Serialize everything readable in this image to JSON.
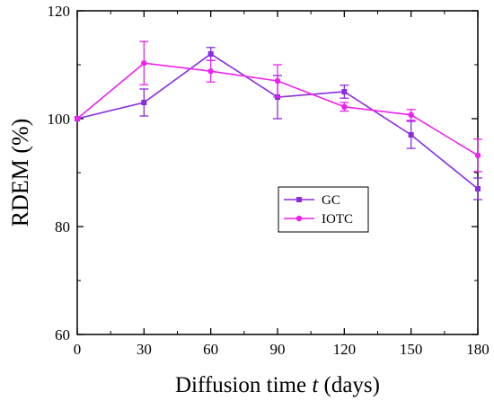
{
  "chart_data": {
    "type": "line",
    "title": "",
    "xlabel": "Diffusion time t (days)",
    "xlabel_parts": {
      "before": "Diffusion time ",
      "italic": "t",
      "after": " (days)"
    },
    "ylabel": "RDEM (%)",
    "xlim": [
      0,
      180
    ],
    "ylim": [
      60,
      120
    ],
    "xticks": [
      0,
      30,
      60,
      90,
      120,
      150,
      180
    ],
    "yticks": [
      60,
      80,
      100,
      120
    ],
    "grid": false,
    "legend_position": "center-right",
    "x": [
      0,
      30,
      60,
      90,
      120,
      150,
      180
    ],
    "series": [
      {
        "name": "GC",
        "color": "#8a2be2",
        "marker": "square",
        "values": [
          100,
          103,
          112,
          104,
          105,
          97,
          87
        ],
        "errors": [
          0,
          2.5,
          1.2,
          4.0,
          1.2,
          2.5,
          2.0
        ]
      },
      {
        "name": "IOTC",
        "color": "#ee22ee",
        "marker": "circle",
        "values": [
          100,
          110.3,
          108.8,
          107,
          102.2,
          100.7,
          93.2
        ],
        "errors": [
          0,
          4.0,
          2.0,
          3.0,
          0.8,
          1.0,
          3.0
        ]
      }
    ]
  }
}
